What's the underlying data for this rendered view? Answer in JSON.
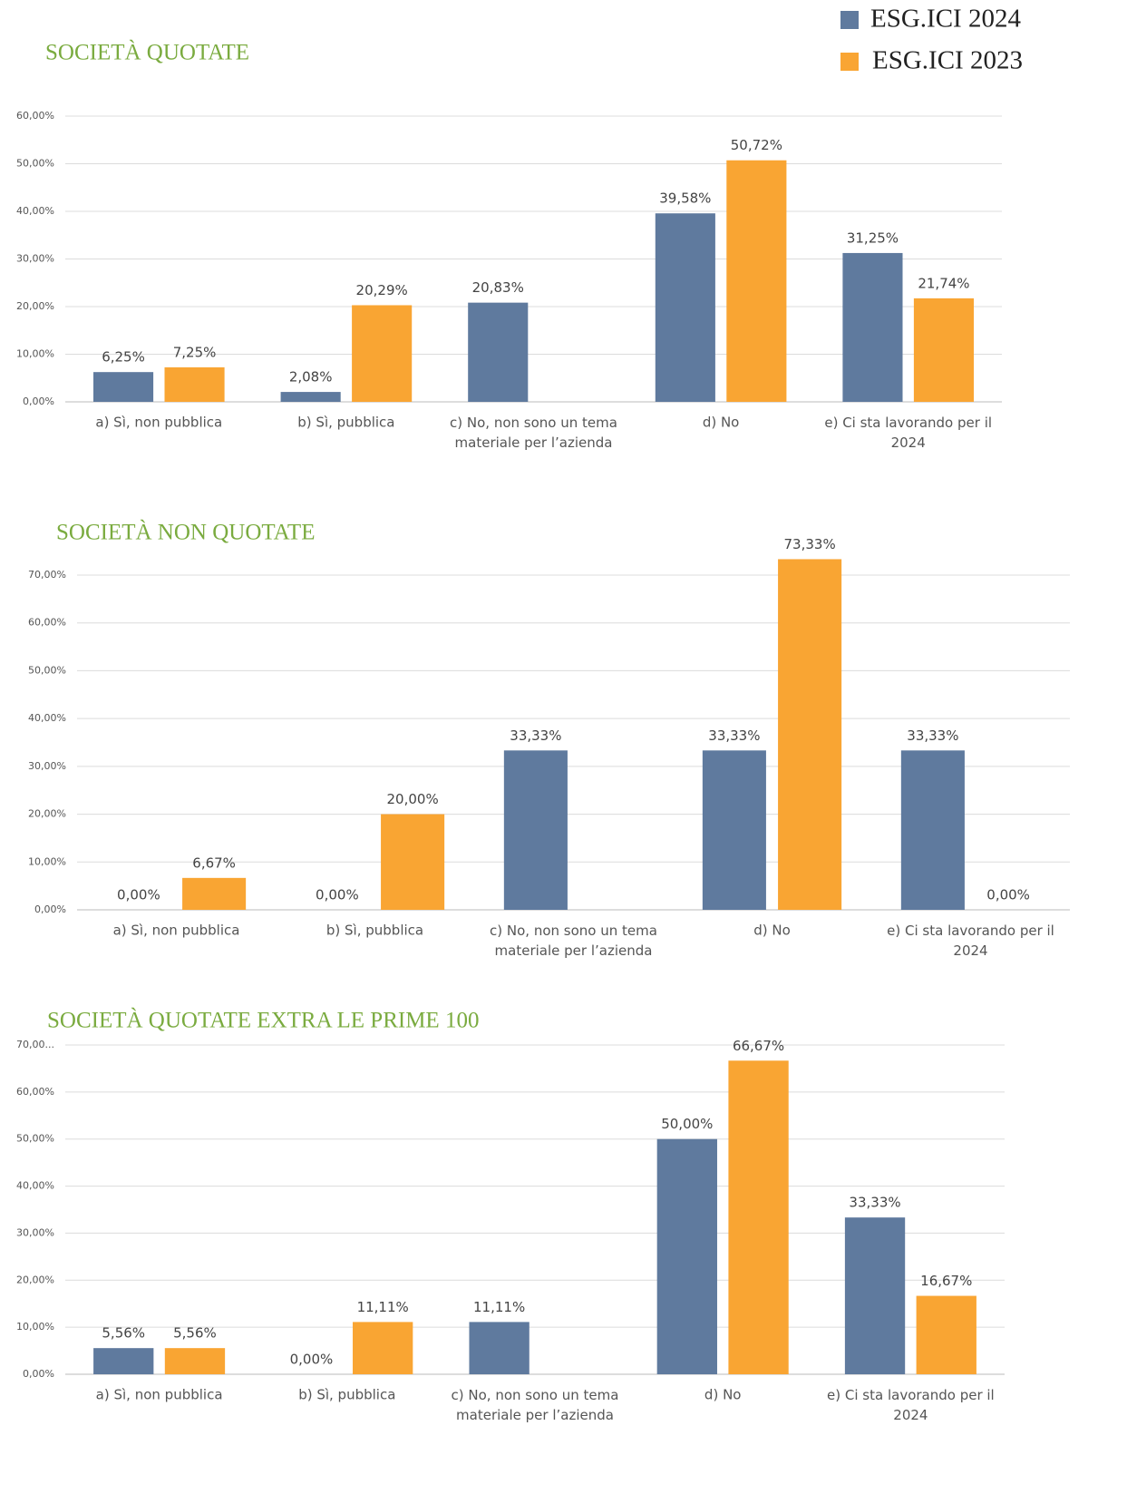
{
  "legend": {
    "items": [
      {
        "name": "ESG.ICI 2024",
        "color": "#5f7a9e"
      },
      {
        "name": "ESG.ICI 2023",
        "color": "#f9a533"
      }
    ]
  },
  "chart_data": [
    {
      "type": "bar",
      "title": "SOCIETÀ QUOTATE",
      "categories": [
        "a) Sì, non pubblica",
        "b) Sì, pubblica",
        "c) No, non sono un tema\nmateriale per l’azienda",
        "d) No",
        "e) Ci sta lavorando per il\n2024"
      ],
      "series": [
        {
          "color": "#5f7a9e",
          "values": [
            6.25,
            2.08,
            20.83,
            39.58,
            31.25
          ],
          "value_labels": [
            "6,25%",
            "2,08%",
            "20,83%",
            "39,58%",
            "31,25%"
          ]
        },
        {
          "color": "#f9a533",
          "values": [
            7.25,
            20.29,
            null,
            50.72,
            21.74
          ],
          "value_labels": [
            "7,25%",
            "20,29%",
            null,
            "50,72%",
            "21,74%"
          ]
        }
      ],
      "ylim": [
        0,
        60
      ],
      "yticks": [
        {
          "value": 0,
          "label": "0,00%"
        },
        {
          "value": 10,
          "label": "10,00%"
        },
        {
          "value": 20,
          "label": "20,00%"
        },
        {
          "value": 30,
          "label": "30,00%"
        },
        {
          "value": 40,
          "label": "40,00%"
        },
        {
          "value": 50,
          "label": "50,00%"
        },
        {
          "value": 60,
          "label": "60,00%"
        }
      ],
      "grid": true
    },
    {
      "type": "bar",
      "title": "SOCIETÀ NON QUOTATE",
      "categories": [
        "a) Sì, non pubblica",
        "b) Sì, pubblica",
        "c) No, non sono un tema\nmateriale per l’azienda",
        "d) No",
        "e) Ci sta lavorando per il\n2024"
      ],
      "series": [
        {
          "color": "#5f7a9e",
          "values": [
            0,
            0,
            33.33,
            33.33,
            33.33
          ],
          "value_labels": [
            "0,00%",
            "0,00%",
            "33,33%",
            "33,33%",
            "33,33%"
          ]
        },
        {
          "color": "#f9a533",
          "values": [
            6.67,
            20,
            null,
            73.33,
            0
          ],
          "value_labels": [
            "6,67%",
            "20,00%",
            null,
            "73,33%",
            "0,00%"
          ]
        }
      ],
      "ylim": [
        0,
        70
      ],
      "yticks": [
        {
          "value": 0,
          "label": "0,00%"
        },
        {
          "value": 10,
          "label": "10,00%"
        },
        {
          "value": 20,
          "label": "20,00%"
        },
        {
          "value": 30,
          "label": "30,00%"
        },
        {
          "value": 40,
          "label": "40,00%"
        },
        {
          "value": 50,
          "label": "50,00%"
        },
        {
          "value": 60,
          "label": "60,00%"
        },
        {
          "value": 70,
          "label": "70,00%"
        }
      ],
      "grid": true
    },
    {
      "type": "bar",
      "title": "SOCIETÀ QUOTATE EXTRA LE PRIME 100",
      "categories": [
        "a) Sì, non pubblica",
        "b) Sì, pubblica",
        "c) No, non sono un tema\nmateriale per l’azienda",
        "d) No",
        "e) Ci sta lavorando per il\n2024"
      ],
      "series": [
        {
          "color": "#5f7a9e",
          "values": [
            5.56,
            0,
            11.11,
            50,
            33.33
          ],
          "value_labels": [
            "5,56%",
            "0,00%",
            "11,11%",
            "50,00%",
            "33,33%"
          ]
        },
        {
          "color": "#f9a533",
          "values": [
            5.56,
            11.11,
            null,
            66.67,
            16.67
          ],
          "value_labels": [
            "5,56%",
            "11,11%",
            null,
            "66,67%",
            "16,67%"
          ]
        }
      ],
      "ylim": [
        0,
        70
      ],
      "yticks": [
        {
          "value": 0,
          "label": "0,00%"
        },
        {
          "value": 10,
          "label": "10,00%"
        },
        {
          "value": 20,
          "label": "20,00%"
        },
        {
          "value": 30,
          "label": "30,00%"
        },
        {
          "value": 40,
          "label": "40,00%"
        },
        {
          "value": 50,
          "label": "50,00%"
        },
        {
          "value": 60,
          "label": "60,00%"
        },
        {
          "value": 70,
          "label": "70,00..."
        }
      ],
      "grid": true
    }
  ]
}
